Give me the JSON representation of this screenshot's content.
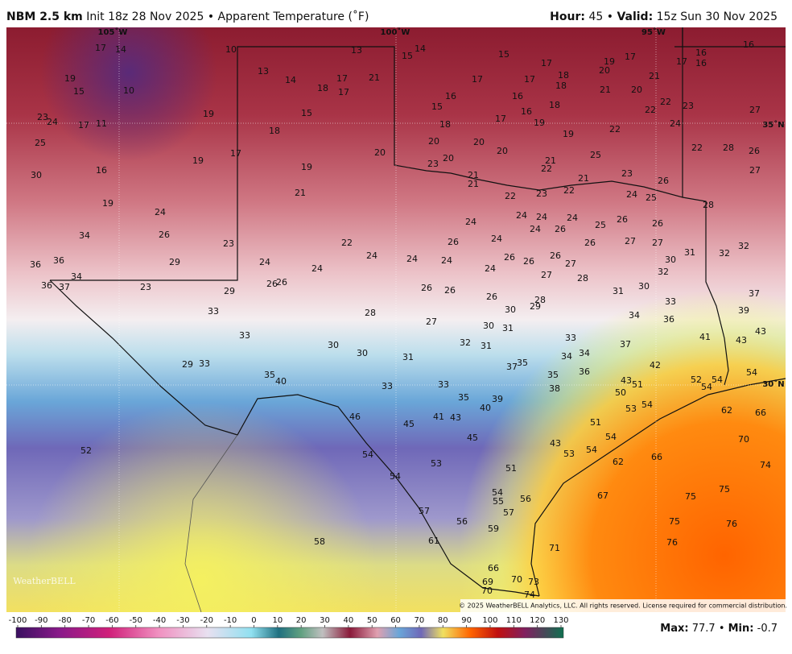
{
  "header": {
    "model": "NBM 2.5 km",
    "init": "Init 18z 28 Nov 2025",
    "separator": "•",
    "field": "Apparent Temperature (˚F)",
    "hour_label": "Hour:",
    "hour": "45",
    "valid_label": "Valid:",
    "valid": "15z Sun 30 Nov 2025"
  },
  "map": {
    "graticule": [
      "105˚W",
      "100˚W",
      "95˚W",
      "35˚N",
      "30˚N"
    ],
    "points": [
      17,
      14,
      10,
      13,
      15,
      14,
      15,
      17,
      19,
      17,
      17,
      16,
      16,
      16,
      20,
      18,
      19,
      13,
      14,
      17,
      21,
      18,
      17,
      17,
      17,
      18,
      21,
      20,
      21,
      15,
      10,
      16,
      16,
      22,
      22,
      23,
      27,
      23,
      24,
      17,
      11,
      19,
      15,
      15,
      18,
      16,
      17,
      18,
      19,
      24,
      22,
      19,
      25,
      18,
      20,
      20,
      20,
      17,
      20,
      22,
      28,
      26,
      25,
      21,
      22,
      20,
      23,
      30,
      16,
      19,
      19,
      27,
      21,
      21,
      21,
      23,
      26,
      22,
      23,
      22,
      21,
      24,
      25,
      28,
      19,
      24,
      24,
      24,
      24,
      24,
      25,
      26,
      26,
      24,
      26,
      34,
      26,
      23,
      22,
      26,
      24,
      24,
      24,
      24,
      24,
      24,
      26,
      26,
      26,
      27,
      26,
      27,
      27,
      30,
      31,
      32,
      32,
      36,
      36,
      29,
      34,
      24,
      27,
      28,
      32,
      36,
      37,
      23,
      29,
      26,
      26,
      26,
      26,
      31,
      30,
      37,
      26,
      28,
      29,
      30,
      33,
      39,
      33,
      28,
      34,
      36,
      27,
      30,
      31,
      43,
      33,
      41,
      43,
      32,
      31,
      33,
      37,
      30,
      30,
      31,
      34,
      34,
      29,
      33,
      35,
      37,
      42,
      54,
      35,
      40,
      35,
      36,
      43,
      51,
      52,
      54,
      54,
      33,
      33,
      38,
      50,
      35,
      39,
      40,
      54,
      53,
      46,
      45,
      41,
      43,
      62,
      66,
      51,
      45,
      54,
      70,
      43,
      53,
      54,
      52,
      54,
      62,
      66,
      74,
      53,
      51,
      54,
      67,
      75,
      75,
      54,
      55,
      56,
      57,
      57,
      56,
      75,
      76,
      59,
      61,
      58,
      76,
      71,
      66,
      69,
      70,
      73,
      70,
      74
    ],
    "logo": "WeatherBELL",
    "copyright": "© 2025 WeatherBELL Analytics, LLC. All rights reserved. License required for commercial distribution."
  },
  "colorbar": {
    "ticks": [
      -100,
      -90,
      -80,
      -70,
      -60,
      -50,
      -40,
      -30,
      -20,
      -10,
      0,
      10,
      20,
      30,
      40,
      50,
      60,
      70,
      80,
      90,
      100,
      110,
      120,
      130
    ]
  },
  "footer": {
    "max_label": "Max:",
    "max": 77.7,
    "separator": "•",
    "min_label": "Min:",
    "min": -0.7
  }
}
